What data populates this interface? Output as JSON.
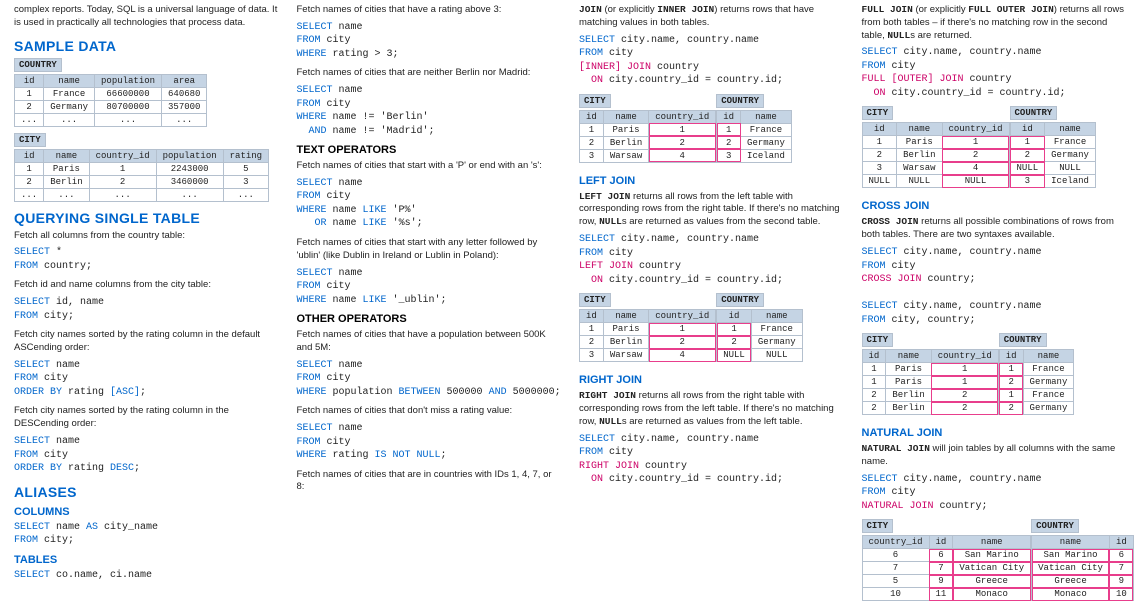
{
  "col1": {
    "intro": "complex reports. Today, SQL is a universal language of data. It is used in practically all technologies that process data.",
    "sample_title": "SAMPLE DATA",
    "country_label": "COUNTRY",
    "country_cols": [
      "id",
      "name",
      "population",
      "area"
    ],
    "country_rows": [
      [
        "1",
        "France",
        "66600000",
        "640680"
      ],
      [
        "2",
        "Germany",
        "80700000",
        "357000"
      ],
      [
        "...",
        "...",
        "...",
        "..."
      ]
    ],
    "city_label": "CITY",
    "city_cols": [
      "id",
      "name",
      "country_id",
      "population",
      "rating"
    ],
    "city_rows": [
      [
        "1",
        "Paris",
        "1",
        "2243000",
        "5"
      ],
      [
        "2",
        "Berlin",
        "2",
        "3460000",
        "3"
      ],
      [
        "...",
        "...",
        "...",
        "...",
        "..."
      ]
    ],
    "qst_title": "QUERYING SINGLE TABLE",
    "d1": "Fetch all columns from the country table:",
    "d2": "Fetch id and name columns from the city table:",
    "d3": "Fetch city names sorted by the rating column in the default ASCending order:",
    "d4": "Fetch city names sorted by the rating column in the DESCending order:",
    "aliases_title": "ALIASES",
    "cols_sub": "COLUMNS",
    "tables_sub": "TABLES"
  },
  "col2": {
    "d0": "Fetch names of cities that have a rating above 3:",
    "d1": "Fetch names of cities that are neither Berlin nor Madrid:",
    "text_ops": "TEXT OPERATORS",
    "d2": "Fetch names of cities that start with a 'P' or end with an 's':",
    "d3": "Fetch names of cities that start with any letter followed by 'ublin' (like Dublin in Ireland or Lublin in Poland):",
    "other_ops": "OTHER OPERATORS",
    "d4": "Fetch names of cities that have a population between 500K and 5M:",
    "d5": "Fetch names of cities that don't miss a rating value:",
    "d6": "Fetch names of cities that are in countries with IDs 1, 4, 7, or 8:"
  },
  "col3": {
    "inner_txt1": "JOIN (or explicitly INNER JOIN) returns rows that have matching values in both tables.",
    "left_title": "LEFT JOIN",
    "left_txt": "LEFT JOIN returns all rows from the left table with corresponding rows from the right table. If there's no matching row, NULLs are returned as values from the second table.",
    "right_title": "RIGHT JOIN",
    "right_txt": "RIGHT JOIN returns all rows from the right table with corresponding rows from the left table. If there's no matching row, NULLs are returned as values from the left table.",
    "tbl_city": "CITY",
    "tbl_country": "COUNTRY",
    "join_cols1": [
      "id",
      "name",
      "country_id"
    ],
    "join_cols2": [
      "id",
      "name"
    ],
    "inner_city": [
      [
        "1",
        "Paris",
        "1"
      ],
      [
        "2",
        "Berlin",
        "2"
      ],
      [
        "3",
        "Warsaw",
        "4"
      ]
    ],
    "inner_country": [
      [
        "1",
        "France"
      ],
      [
        "2",
        "Germany"
      ],
      [
        "3",
        "Iceland"
      ]
    ],
    "left_city": [
      [
        "1",
        "Paris",
        "1"
      ],
      [
        "2",
        "Berlin",
        "2"
      ],
      [
        "3",
        "Warsaw",
        "4"
      ]
    ],
    "left_country": [
      [
        "1",
        "France"
      ],
      [
        "2",
        "Germany"
      ],
      [
        "NULL",
        "NULL"
      ]
    ]
  },
  "col4": {
    "full_txt": "FULL JOIN (or explicitly FULL OUTER JOIN) returns all rows from both tables – if there's no matching row in the second table, NULLs are returned.",
    "full_cols1": [
      "id",
      "name",
      "country_id"
    ],
    "full_cols2": [
      "id",
      "name"
    ],
    "full_city": [
      [
        "1",
        "Paris",
        "1"
      ],
      [
        "2",
        "Berlin",
        "2"
      ],
      [
        "3",
        "Warsaw",
        "4"
      ],
      [
        "NULL",
        "NULL",
        "NULL"
      ]
    ],
    "full_country": [
      [
        "1",
        "France"
      ],
      [
        "2",
        "Germany"
      ],
      [
        "NULL",
        "NULL"
      ],
      [
        "3",
        "Iceland"
      ]
    ],
    "cross_title": "CROSS JOIN",
    "cross_txt": "CROSS JOIN returns all possible combinations of rows from both tables. There are two syntaxes available.",
    "cross_city": [
      [
        "1",
        "Paris",
        "1"
      ],
      [
        "1",
        "Paris",
        "1"
      ],
      [
        "2",
        "Berlin",
        "2"
      ],
      [
        "2",
        "Berlin",
        "2"
      ]
    ],
    "cross_country": [
      [
        "1",
        "France"
      ],
      [
        "2",
        "Germany"
      ],
      [
        "1",
        "France"
      ],
      [
        "2",
        "Germany"
      ]
    ],
    "nat_title": "NATURAL JOIN",
    "nat_txt": "NATURAL JOIN will join tables by all columns with the same name.",
    "nat_cols1": [
      "country_id",
      "id",
      "name"
    ],
    "nat_cols2": [
      "name",
      "id"
    ],
    "nat_city": [
      [
        "6",
        "6",
        "San Marino"
      ],
      [
        "7",
        "7",
        "Vatican City"
      ],
      [
        "5",
        "9",
        "Greece"
      ],
      [
        "10",
        "11",
        "Monaco"
      ]
    ],
    "nat_country": [
      [
        "San Marino",
        "6"
      ],
      [
        "Vatican City",
        "7"
      ],
      [
        "Greece",
        "9"
      ],
      [
        "Monaco",
        "10"
      ]
    ]
  }
}
